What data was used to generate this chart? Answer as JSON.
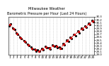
{
  "title": "Barometric Pressure per Hour (Last 24 Hours)",
  "subtitle": "Milwaukee Weather",
  "hours": [
    1,
    2,
    3,
    4,
    5,
    6,
    7,
    8,
    9,
    10,
    11,
    12,
    13,
    14,
    15,
    16,
    17,
    18,
    19,
    20,
    21,
    22,
    23,
    24
  ],
  "pressure": [
    30.02,
    29.88,
    29.72,
    29.58,
    29.45,
    29.33,
    29.22,
    29.15,
    29.12,
    29.18,
    29.26,
    29.22,
    29.3,
    29.28,
    29.22,
    29.35,
    29.48,
    29.58,
    29.68,
    29.78,
    29.88,
    29.95,
    30.05,
    30.15
  ],
  "extra_dots": [
    [
      1.2,
      30.05
    ],
    [
      0.8,
      29.98
    ],
    [
      2.3,
      29.85
    ],
    [
      1.8,
      29.9
    ],
    [
      3.1,
      29.7
    ],
    [
      2.7,
      29.75
    ],
    [
      4.2,
      29.55
    ],
    [
      3.8,
      29.6
    ],
    [
      5.3,
      29.42
    ],
    [
      4.8,
      29.48
    ],
    [
      6.2,
      29.3
    ],
    [
      5.8,
      29.35
    ],
    [
      7.3,
      29.18
    ],
    [
      6.8,
      29.25
    ],
    [
      8.2,
      29.12
    ],
    [
      7.8,
      29.18
    ],
    [
      9.3,
      29.1
    ],
    [
      8.7,
      29.15
    ],
    [
      10.2,
      29.16
    ],
    [
      9.8,
      29.2
    ],
    [
      11.3,
      29.24
    ],
    [
      10.8,
      29.28
    ],
    [
      12.2,
      29.18
    ],
    [
      11.8,
      29.24
    ],
    [
      13.3,
      29.28
    ],
    [
      12.8,
      29.32
    ],
    [
      14.2,
      29.24
    ],
    [
      13.8,
      29.3
    ],
    [
      15.3,
      29.2
    ],
    [
      14.8,
      29.25
    ],
    [
      16.2,
      29.32
    ],
    [
      15.8,
      29.38
    ],
    [
      17.3,
      29.45
    ],
    [
      16.8,
      29.5
    ],
    [
      18.2,
      29.55
    ],
    [
      17.8,
      29.6
    ],
    [
      19.3,
      29.65
    ],
    [
      18.8,
      29.7
    ],
    [
      20.2,
      29.75
    ],
    [
      19.8,
      29.8
    ],
    [
      21.3,
      29.85
    ],
    [
      20.8,
      29.9
    ],
    [
      22.2,
      29.92
    ],
    [
      21.8,
      29.98
    ],
    [
      23.3,
      30.02
    ],
    [
      22.8,
      30.08
    ],
    [
      24.2,
      30.12
    ],
    [
      23.8,
      30.18
    ]
  ],
  "ylim": [
    29.0,
    30.3
  ],
  "ytick_values": [
    29.0,
    29.1,
    29.2,
    29.3,
    29.4,
    29.5,
    29.6,
    29.7,
    29.8,
    29.9,
    30.0,
    30.1,
    30.2,
    30.3
  ],
  "ytick_labels": [
    "29.0",
    "29.1",
    "29.2",
    "29.3",
    "29.4",
    "29.5",
    "29.6",
    "29.7",
    "29.8",
    "29.9",
    "30.0",
    "30.1",
    "30.2",
    "30.3"
  ],
  "xlim": [
    0.5,
    24.5
  ],
  "line_color": "#cc0000",
  "dot_color": "#000000",
  "grid_color": "#bbbbbb",
  "bg_color": "#ffffff",
  "title_fontsize": 3.8,
  "tick_fontsize": 2.8,
  "ylabel_fontsize": 2.8
}
